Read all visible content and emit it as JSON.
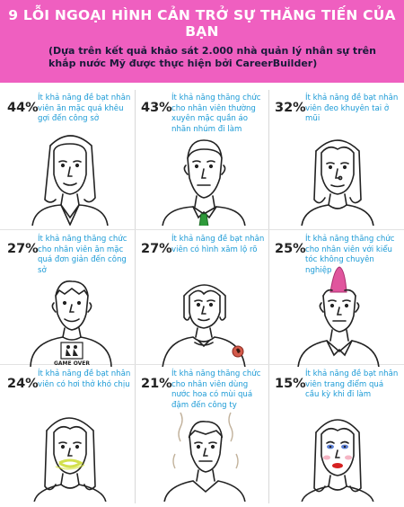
{
  "header": {
    "title": "9 LỖI NGOẠI HÌNH CẢN TRỞ SỰ THĂNG TIẾN CỦA BẠN",
    "subtitle": "(Dựa trên kết quả khảo sát 2.000 nhà quản lý nhân sự trên khắp nước Mỹ được thực hiện bởi CareerBuilder)",
    "background": "#ef5fc0"
  },
  "items": [
    {
      "percent": "44%",
      "text": "Ít khả năng đề bạt nhân viên ăn mặc quá khêu gợi đến công sở",
      "figure": "woman-long-hair"
    },
    {
      "percent": "43%",
      "text": "Ít khả năng thăng chức cho nhân viên thường xuyên mặc quần áo nhăn nhúm đi làm",
      "figure": "man-green-tie"
    },
    {
      "percent": "32%",
      "text": "Ít khả năng đề bạt nhân viên đeo khuyên tai ở mũi",
      "figure": "woman-nose-ring"
    },
    {
      "percent": "27%",
      "text": "Ít khả năng thăng chức cho nhân viên ăn mặc quá đơn giản đến công sở",
      "figure": "man-game-over-shirt",
      "shirt_text": "GAME OVER"
    },
    {
      "percent": "27%",
      "text": "Ít khả năng đề bạt nhân viên có hình xăm lộ rõ",
      "figure": "woman-tattoo"
    },
    {
      "percent": "25%",
      "text": "Ít khả năng thăng chức cho nhân viên với kiểu tóc không chuyên nghiệp",
      "figure": "man-pink-mohawk"
    },
    {
      "percent": "24%",
      "text": "Ít khả năng đề bạt nhân viên có hơi thở khó chịu",
      "figure": "woman-bad-breath"
    },
    {
      "percent": "21%",
      "text": "Ít khả năng thăng chức cho nhân viên dùng nước hoa có mùi quá đậm đến công ty",
      "figure": "man-strong-perfume"
    },
    {
      "percent": "15%",
      "text": "Ít khả năng đề bạt nhân viên trang điểm quá cầu kỳ khi đi làm",
      "figure": "woman-heavy-makeup"
    }
  ],
  "colors": {
    "percent": "#222222",
    "text": "#1a9ad6",
    "tie": "#2e9a3a",
    "mohawk": "#e0559d",
    "lipstick": "#d62020"
  }
}
